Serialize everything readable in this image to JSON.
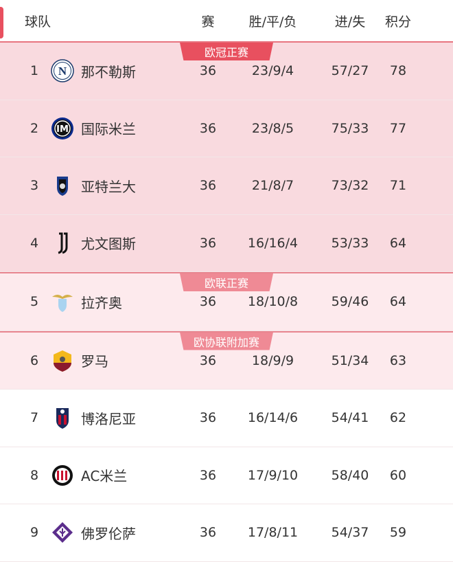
{
  "header": {
    "team": "球队",
    "games": "赛",
    "wdl": "胜/平/负",
    "goals": "进/失",
    "points": "积分"
  },
  "zones": {
    "cl": "欧冠正赛",
    "el": "欧联正赛",
    "ecl": "欧协联附加赛"
  },
  "colors": {
    "accent": "#e8505f",
    "cl_bg": "#f9dadf",
    "el_bg": "#fdeaed",
    "el_badge": "#ef8a95"
  },
  "rows": [
    {
      "rank": "1",
      "team": "那不勒斯",
      "games": "36",
      "wdl": "23/9/4",
      "goals": "57/27",
      "points": "78",
      "logo": "napoli-crest"
    },
    {
      "rank": "2",
      "team": "国际米兰",
      "games": "36",
      "wdl": "23/8/5",
      "goals": "75/33",
      "points": "77",
      "logo": "inter-crest"
    },
    {
      "rank": "3",
      "team": "亚特兰大",
      "games": "36",
      "wdl": "21/8/7",
      "goals": "73/32",
      "points": "71",
      "logo": "atalanta-crest"
    },
    {
      "rank": "4",
      "team": "尤文图斯",
      "games": "36",
      "wdl": "16/16/4",
      "goals": "53/33",
      "points": "64",
      "logo": "juventus-crest"
    },
    {
      "rank": "5",
      "team": "拉齐奥",
      "games": "36",
      "wdl": "18/10/8",
      "goals": "59/46",
      "points": "64",
      "logo": "lazio-crest"
    },
    {
      "rank": "6",
      "team": "罗马",
      "games": "36",
      "wdl": "18/9/9",
      "goals": "51/34",
      "points": "63",
      "logo": "roma-crest"
    },
    {
      "rank": "7",
      "team": "博洛尼亚",
      "games": "36",
      "wdl": "16/14/6",
      "goals": "54/41",
      "points": "62",
      "logo": "bologna-crest"
    },
    {
      "rank": "8",
      "team": "AC米兰",
      "games": "36",
      "wdl": "17/9/10",
      "goals": "58/40",
      "points": "60",
      "logo": "milan-crest"
    },
    {
      "rank": "9",
      "team": "佛罗伦萨",
      "games": "36",
      "wdl": "17/8/11",
      "goals": "54/37",
      "points": "59",
      "logo": "fiorentina-crest"
    }
  ]
}
